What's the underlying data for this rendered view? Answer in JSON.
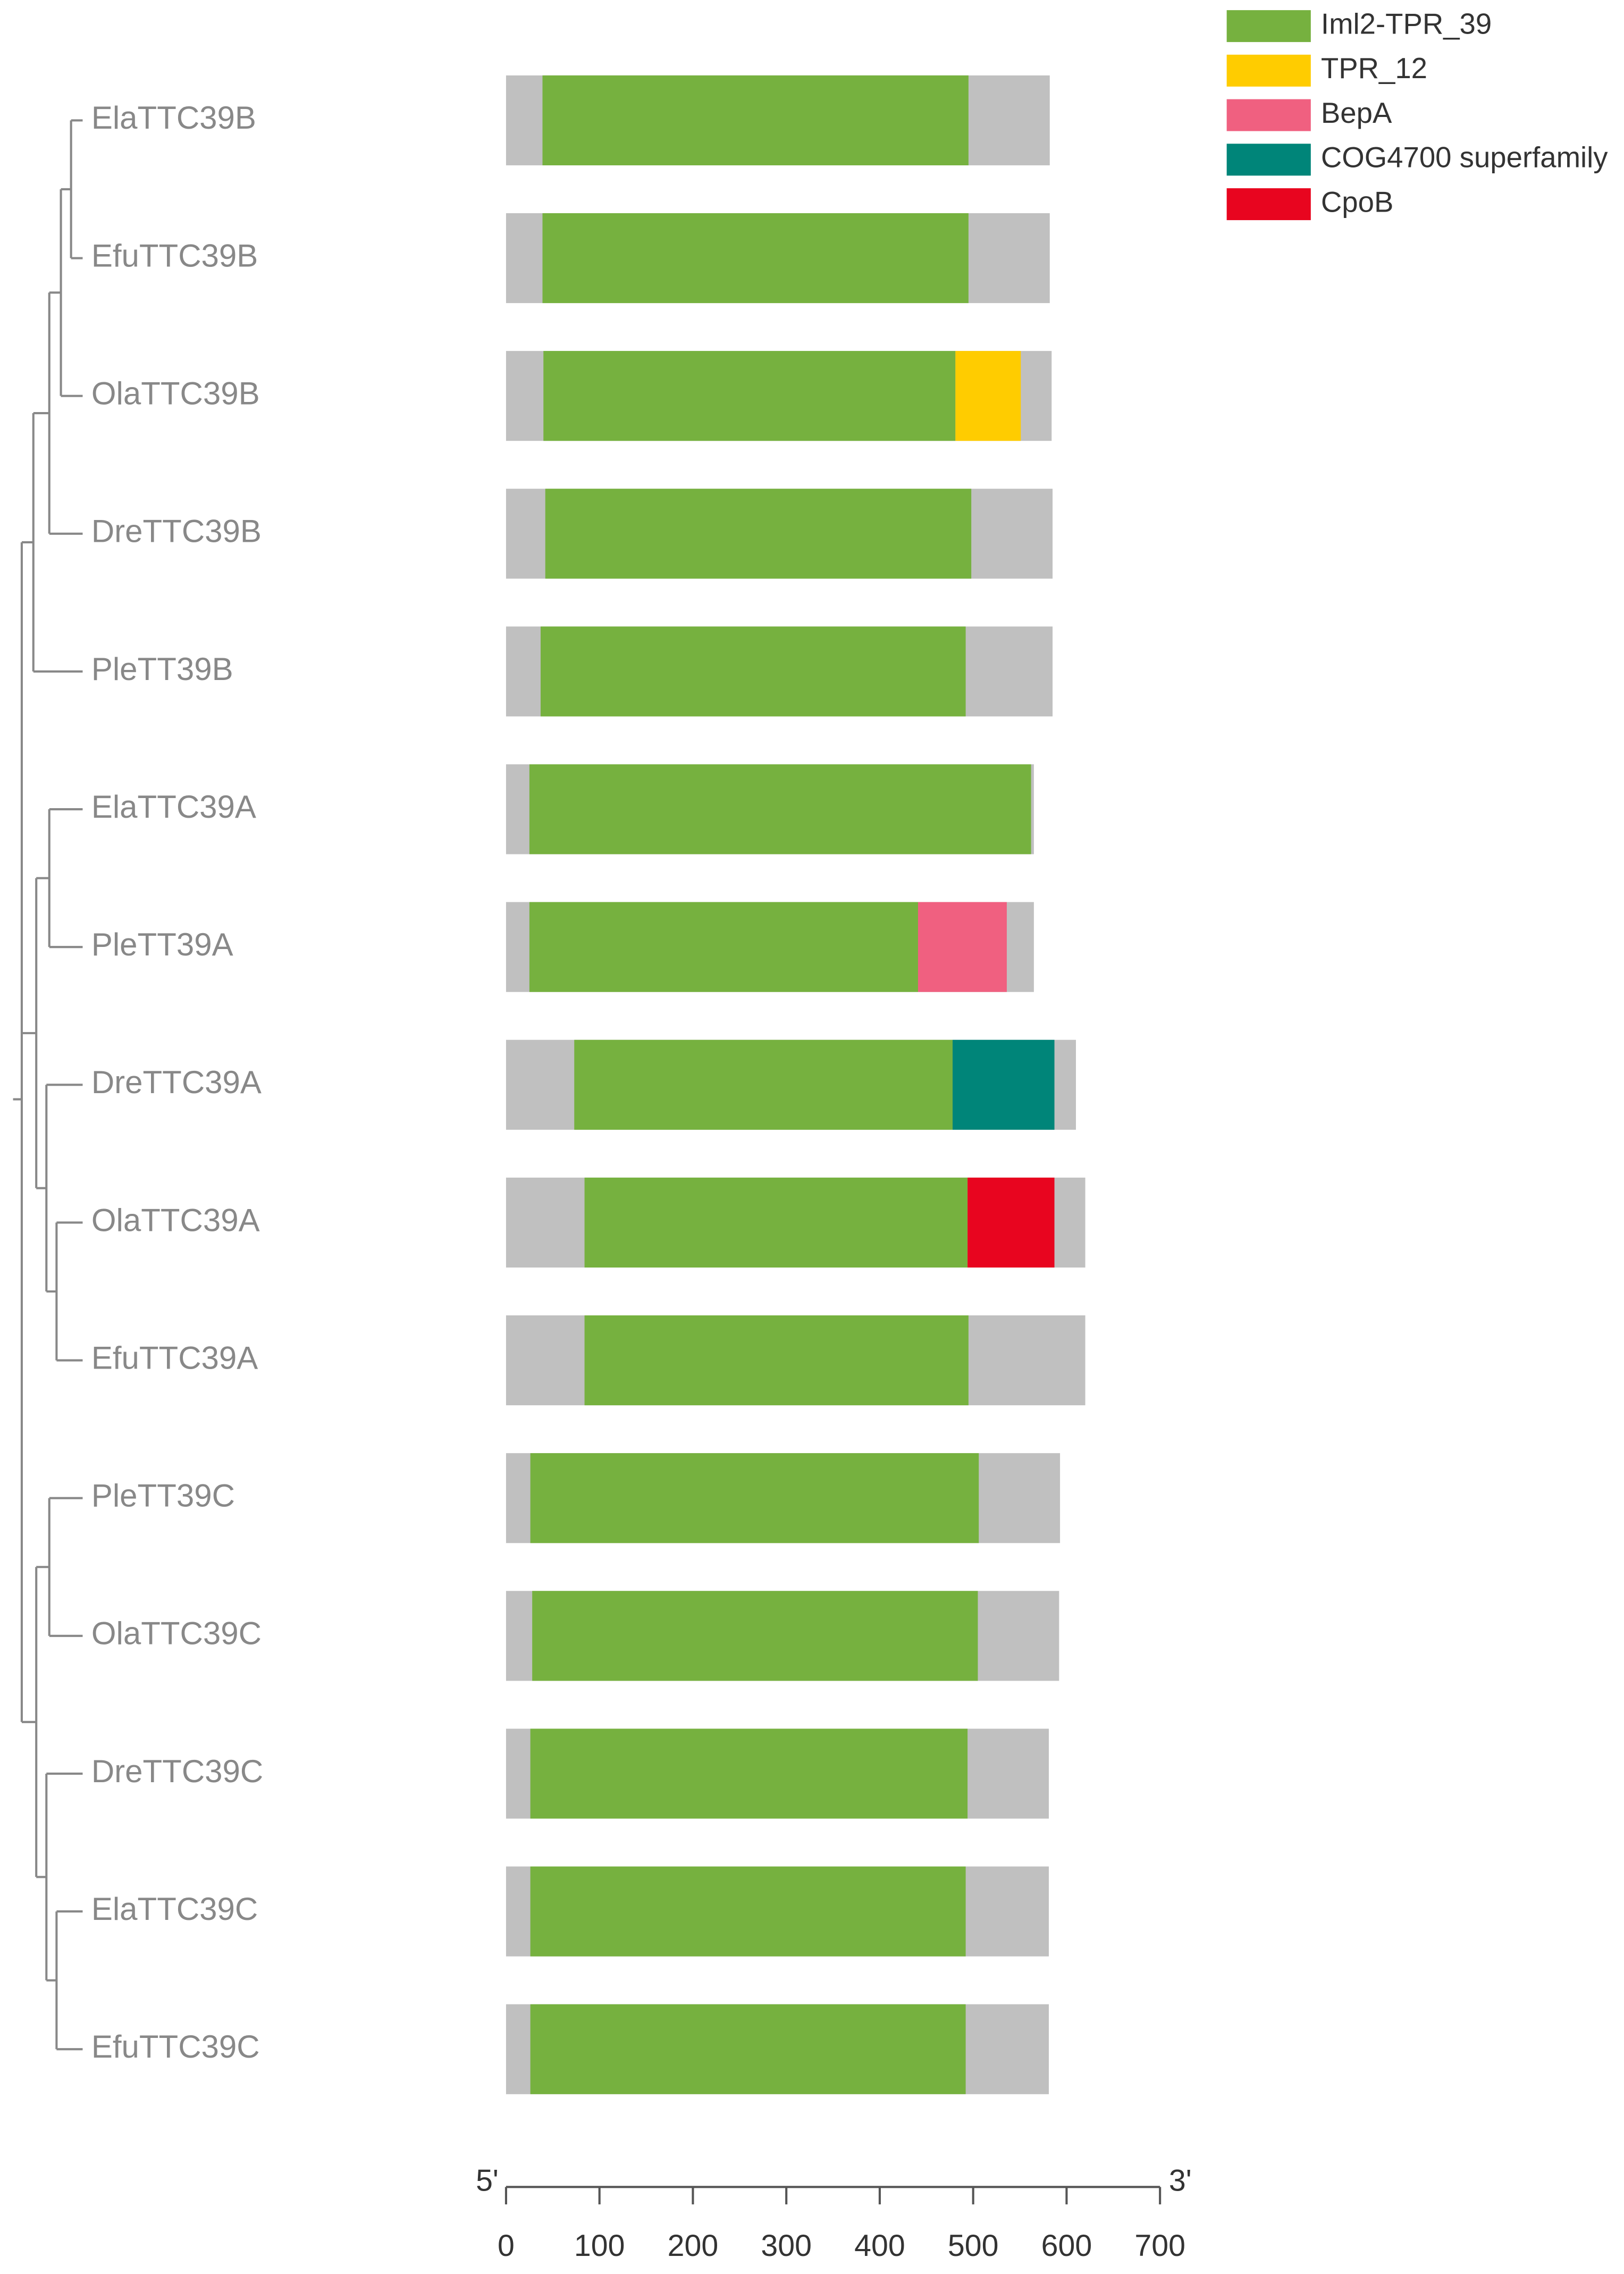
{
  "chart_data": {
    "type": "domain",
    "categories": [
      "ElaTTC39B",
      "EfuTTC39B",
      "OlaTTC39B",
      "DreTTC39B",
      "PleTT39B",
      "ElaTTC39A",
      "PleTT39A",
      "DreTTC39A",
      "OlaTTC39A",
      "EfuTTC39A",
      "PleTT39C",
      "OlaTTC39C",
      "DreTTC39C",
      "ElaTTC39C",
      "EfuTTC39C"
    ],
    "lengths": [
      582,
      582,
      584,
      585,
      585,
      565,
      565,
      610,
      620,
      620,
      593,
      592,
      581,
      581,
      581
    ],
    "backbone_color": "#c0c0c0",
    "series": [
      {
        "name": "Iml2-TPR_39",
        "color": "#76b13f",
        "values": [
          [
            39,
            495
          ],
          [
            39,
            495
          ],
          [
            40,
            481
          ],
          [
            42,
            498
          ],
          [
            37,
            492
          ],
          [
            25,
            562
          ],
          [
            25,
            441
          ],
          [
            73,
            478
          ],
          [
            84,
            494
          ],
          [
            84,
            495
          ],
          [
            26,
            506
          ],
          [
            28,
            505
          ],
          [
            26,
            494
          ],
          [
            26,
            492
          ],
          [
            26,
            492
          ]
        ]
      },
      {
        "name": "TPR_12",
        "color": "#ffcc00",
        "values": [
          null,
          null,
          [
            481,
            551
          ],
          null,
          null,
          null,
          null,
          null,
          null,
          null,
          null,
          null,
          null,
          null,
          null
        ]
      },
      {
        "name": "BepA",
        "color": "#f06080",
        "values": [
          null,
          null,
          null,
          null,
          null,
          null,
          [
            441,
            536
          ],
          null,
          null,
          null,
          null,
          null,
          null,
          null,
          null
        ]
      },
      {
        "name": "COG4700 superfamily",
        "color": "#008579",
        "values": [
          null,
          null,
          null,
          null,
          null,
          null,
          null,
          [
            478,
            587
          ],
          null,
          null,
          null,
          null,
          null,
          null,
          null
        ]
      },
      {
        "name": "CpoB",
        "color": "#e8051f",
        "values": [
          null,
          null,
          null,
          null,
          null,
          null,
          null,
          null,
          [
            494,
            587
          ],
          null,
          null,
          null,
          null,
          null,
          null
        ]
      }
    ],
    "xlim": [
      0,
      700
    ],
    "xticks": [
      0,
      100,
      200,
      300,
      400,
      500,
      600,
      700
    ],
    "x_start_label": "5'",
    "x_end_label": "3'"
  }
}
